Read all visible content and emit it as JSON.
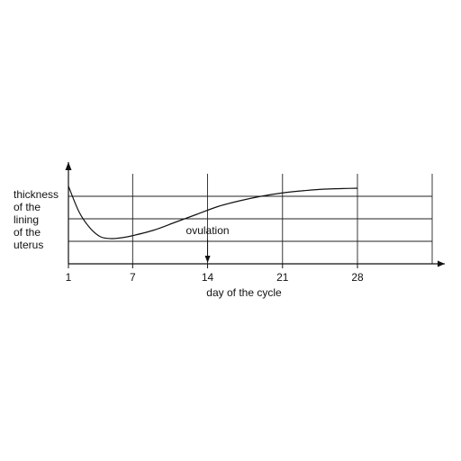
{
  "chart_data": {
    "type": "line",
    "title": "",
    "xlabel": "day of the cycle",
    "ylabel_lines": [
      "thickness",
      "of the",
      "lining",
      "of the",
      "uterus"
    ],
    "x_ticks": [
      1,
      7,
      14,
      21,
      28
    ],
    "x_tick_labels": [
      "1",
      "7",
      "14",
      "21",
      "28"
    ],
    "xlim": [
      1,
      35
    ],
    "ylim": [
      0,
      4
    ],
    "y_tick_labels_shown": false,
    "grid": true,
    "series": [
      {
        "points": [
          {
            "x": 1,
            "y": 3.45
          },
          {
            "x": 2,
            "y": 2.3
          },
          {
            "x": 3,
            "y": 1.6
          },
          {
            "x": 4,
            "y": 1.2
          },
          {
            "x": 5,
            "y": 1.12
          },
          {
            "x": 6,
            "y": 1.16
          },
          {
            "x": 7,
            "y": 1.25
          },
          {
            "x": 9,
            "y": 1.5
          },
          {
            "x": 11,
            "y": 1.85
          },
          {
            "x": 13,
            "y": 2.2
          },
          {
            "x": 15,
            "y": 2.55
          },
          {
            "x": 17,
            "y": 2.8
          },
          {
            "x": 19,
            "y": 3.0
          },
          {
            "x": 21,
            "y": 3.15
          },
          {
            "x": 23,
            "y": 3.25
          },
          {
            "x": 25,
            "y": 3.32
          },
          {
            "x": 28,
            "y": 3.36
          }
        ]
      }
    ],
    "annotations": [
      {
        "text": "ovulation",
        "x": 14,
        "kind": "arrow-down-to-axis"
      }
    ]
  }
}
